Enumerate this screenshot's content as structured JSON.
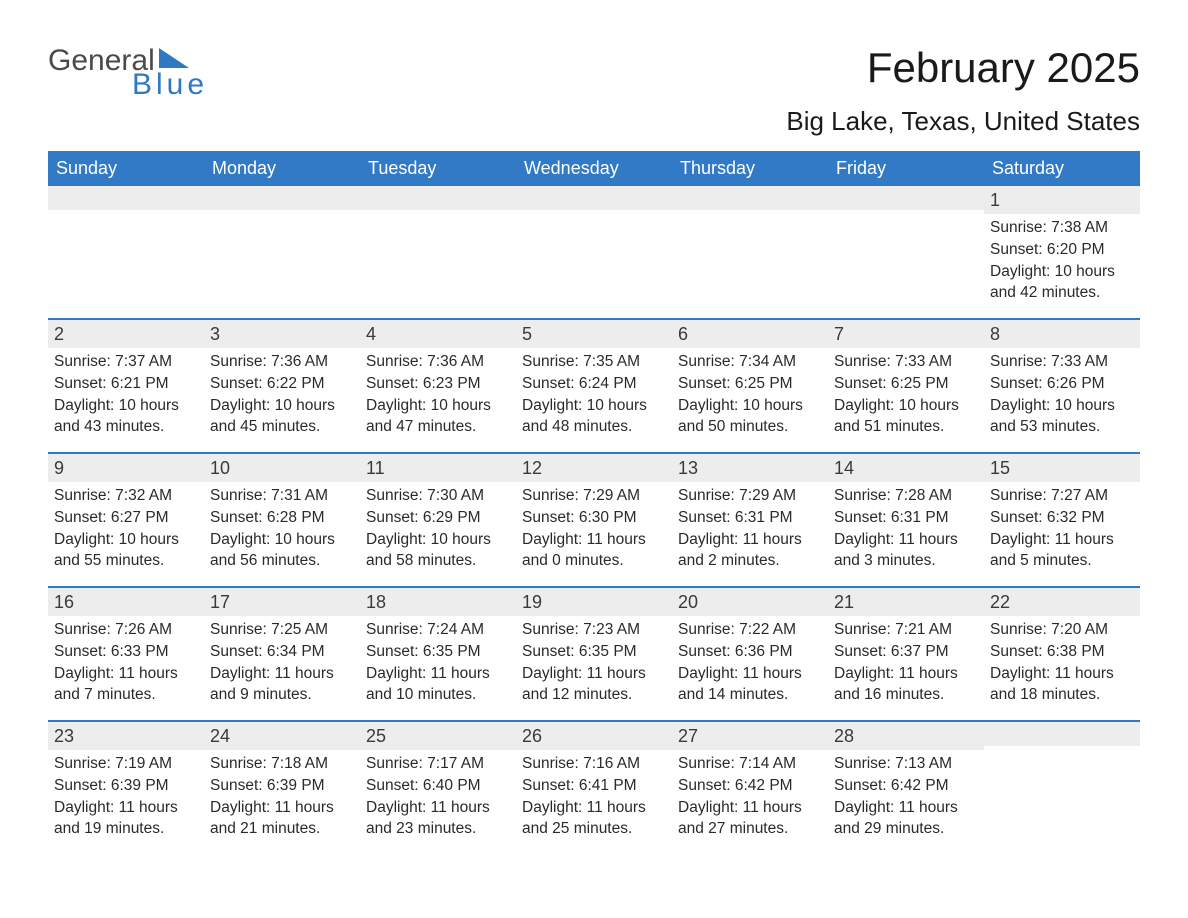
{
  "logo": {
    "word1": "General",
    "word2": "Blue",
    "tri_color": "#2f78c4"
  },
  "title": "February 2025",
  "location": "Big Lake, Texas, United States",
  "colors": {
    "header_bg": "#3279c6",
    "header_text": "#ffffff",
    "row_divider": "#3279c6",
    "daynum_bg": "#ededed",
    "text": "#2a2a2a",
    "logo_gray": "#4a4a4a",
    "logo_blue": "#2f78c4",
    "background": "#ffffff"
  },
  "typography": {
    "title_fontsize": 42,
    "location_fontsize": 26,
    "weekday_fontsize": 18,
    "daynum_fontsize": 18,
    "body_fontsize": 15.5,
    "logo_fontsize": 30
  },
  "weekdays": [
    "Sunday",
    "Monday",
    "Tuesday",
    "Wednesday",
    "Thursday",
    "Friday",
    "Saturday"
  ],
  "weeks": [
    [
      null,
      null,
      null,
      null,
      null,
      null,
      {
        "day": "1",
        "sunrise": "Sunrise: 7:38 AM",
        "sunset": "Sunset: 6:20 PM",
        "daylight": "Daylight: 10 hours and 42 minutes."
      }
    ],
    [
      {
        "day": "2",
        "sunrise": "Sunrise: 7:37 AM",
        "sunset": "Sunset: 6:21 PM",
        "daylight": "Daylight: 10 hours and 43 minutes."
      },
      {
        "day": "3",
        "sunrise": "Sunrise: 7:36 AM",
        "sunset": "Sunset: 6:22 PM",
        "daylight": "Daylight: 10 hours and 45 minutes."
      },
      {
        "day": "4",
        "sunrise": "Sunrise: 7:36 AM",
        "sunset": "Sunset: 6:23 PM",
        "daylight": "Daylight: 10 hours and 47 minutes."
      },
      {
        "day": "5",
        "sunrise": "Sunrise: 7:35 AM",
        "sunset": "Sunset: 6:24 PM",
        "daylight": "Daylight: 10 hours and 48 minutes."
      },
      {
        "day": "6",
        "sunrise": "Sunrise: 7:34 AM",
        "sunset": "Sunset: 6:25 PM",
        "daylight": "Daylight: 10 hours and 50 minutes."
      },
      {
        "day": "7",
        "sunrise": "Sunrise: 7:33 AM",
        "sunset": "Sunset: 6:25 PM",
        "daylight": "Daylight: 10 hours and 51 minutes."
      },
      {
        "day": "8",
        "sunrise": "Sunrise: 7:33 AM",
        "sunset": "Sunset: 6:26 PM",
        "daylight": "Daylight: 10 hours and 53 minutes."
      }
    ],
    [
      {
        "day": "9",
        "sunrise": "Sunrise: 7:32 AM",
        "sunset": "Sunset: 6:27 PM",
        "daylight": "Daylight: 10 hours and 55 minutes."
      },
      {
        "day": "10",
        "sunrise": "Sunrise: 7:31 AM",
        "sunset": "Sunset: 6:28 PM",
        "daylight": "Daylight: 10 hours and 56 minutes."
      },
      {
        "day": "11",
        "sunrise": "Sunrise: 7:30 AM",
        "sunset": "Sunset: 6:29 PM",
        "daylight": "Daylight: 10 hours and 58 minutes."
      },
      {
        "day": "12",
        "sunrise": "Sunrise: 7:29 AM",
        "sunset": "Sunset: 6:30 PM",
        "daylight": "Daylight: 11 hours and 0 minutes."
      },
      {
        "day": "13",
        "sunrise": "Sunrise: 7:29 AM",
        "sunset": "Sunset: 6:31 PM",
        "daylight": "Daylight: 11 hours and 2 minutes."
      },
      {
        "day": "14",
        "sunrise": "Sunrise: 7:28 AM",
        "sunset": "Sunset: 6:31 PM",
        "daylight": "Daylight: 11 hours and 3 minutes."
      },
      {
        "day": "15",
        "sunrise": "Sunrise: 7:27 AM",
        "sunset": "Sunset: 6:32 PM",
        "daylight": "Daylight: 11 hours and 5 minutes."
      }
    ],
    [
      {
        "day": "16",
        "sunrise": "Sunrise: 7:26 AM",
        "sunset": "Sunset: 6:33 PM",
        "daylight": "Daylight: 11 hours and 7 minutes."
      },
      {
        "day": "17",
        "sunrise": "Sunrise: 7:25 AM",
        "sunset": "Sunset: 6:34 PM",
        "daylight": "Daylight: 11 hours and 9 minutes."
      },
      {
        "day": "18",
        "sunrise": "Sunrise: 7:24 AM",
        "sunset": "Sunset: 6:35 PM",
        "daylight": "Daylight: 11 hours and 10 minutes."
      },
      {
        "day": "19",
        "sunrise": "Sunrise: 7:23 AM",
        "sunset": "Sunset: 6:35 PM",
        "daylight": "Daylight: 11 hours and 12 minutes."
      },
      {
        "day": "20",
        "sunrise": "Sunrise: 7:22 AM",
        "sunset": "Sunset: 6:36 PM",
        "daylight": "Daylight: 11 hours and 14 minutes."
      },
      {
        "day": "21",
        "sunrise": "Sunrise: 7:21 AM",
        "sunset": "Sunset: 6:37 PM",
        "daylight": "Daylight: 11 hours and 16 minutes."
      },
      {
        "day": "22",
        "sunrise": "Sunrise: 7:20 AM",
        "sunset": "Sunset: 6:38 PM",
        "daylight": "Daylight: 11 hours and 18 minutes."
      }
    ],
    [
      {
        "day": "23",
        "sunrise": "Sunrise: 7:19 AM",
        "sunset": "Sunset: 6:39 PM",
        "daylight": "Daylight: 11 hours and 19 minutes."
      },
      {
        "day": "24",
        "sunrise": "Sunrise: 7:18 AM",
        "sunset": "Sunset: 6:39 PM",
        "daylight": "Daylight: 11 hours and 21 minutes."
      },
      {
        "day": "25",
        "sunrise": "Sunrise: 7:17 AM",
        "sunset": "Sunset: 6:40 PM",
        "daylight": "Daylight: 11 hours and 23 minutes."
      },
      {
        "day": "26",
        "sunrise": "Sunrise: 7:16 AM",
        "sunset": "Sunset: 6:41 PM",
        "daylight": "Daylight: 11 hours and 25 minutes."
      },
      {
        "day": "27",
        "sunrise": "Sunrise: 7:14 AM",
        "sunset": "Sunset: 6:42 PM",
        "daylight": "Daylight: 11 hours and 27 minutes."
      },
      {
        "day": "28",
        "sunrise": "Sunrise: 7:13 AM",
        "sunset": "Sunset: 6:42 PM",
        "daylight": "Daylight: 11 hours and 29 minutes."
      },
      null
    ]
  ]
}
